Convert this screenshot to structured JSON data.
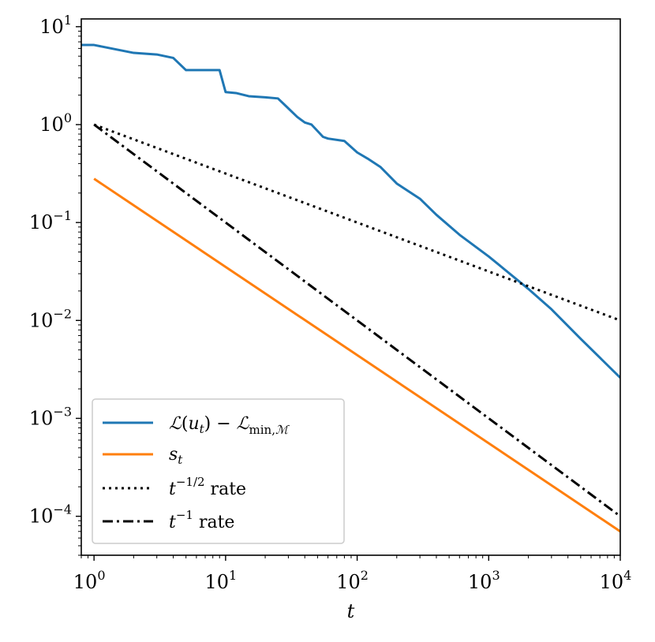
{
  "chart_data": {
    "type": "line",
    "xlabel": "t",
    "ylabel": "",
    "xscale": "log",
    "yscale": "log",
    "xlim": [
      0.8,
      10000
    ],
    "ylim": [
      4e-05,
      12
    ],
    "grid": false,
    "legend_position": "lower-left",
    "x_ticks": [
      {
        "base": "10",
        "exp": "0",
        "value": 1
      },
      {
        "base": "10",
        "exp": "1",
        "value": 10
      },
      {
        "base": "10",
        "exp": "2",
        "value": 100
      },
      {
        "base": "10",
        "exp": "3",
        "value": 1000
      },
      {
        "base": "10",
        "exp": "4",
        "value": 10000
      }
    ],
    "y_ticks": [
      {
        "base": "10",
        "exp": "1",
        "value": 10
      },
      {
        "base": "10",
        "exp": "0",
        "value": 1
      },
      {
        "base": "10",
        "exp": "−1",
        "value": 0.1
      },
      {
        "base": "10",
        "exp": "−2",
        "value": 0.01
      },
      {
        "base": "10",
        "exp": "−3",
        "value": 0.001
      },
      {
        "base": "10",
        "exp": "−4",
        "value": 0.0001
      }
    ],
    "series": [
      {
        "name": "ℒ(u_t) − ℒ_min,ℳ",
        "color": "#1f77b4",
        "style": "solid",
        "x": [
          0.8,
          1,
          2,
          3,
          4,
          5,
          7,
          9,
          10,
          12,
          15,
          20,
          25,
          28,
          35,
          40,
          45,
          55,
          60,
          80,
          100,
          120,
          150,
          200,
          300,
          400,
          600,
          1000,
          2000,
          3000,
          5000,
          10000
        ],
        "y": [
          6.5,
          6.5,
          5.4,
          5.2,
          4.8,
          3.6,
          3.6,
          3.6,
          2.15,
          2.1,
          1.95,
          1.9,
          1.85,
          1.6,
          1.2,
          1.05,
          1.0,
          0.75,
          0.72,
          0.68,
          0.52,
          0.45,
          0.37,
          0.25,
          0.175,
          0.12,
          0.075,
          0.045,
          0.021,
          0.013,
          0.0065,
          0.0026
        ]
      },
      {
        "name": "s_t",
        "color": "#ff7f0e",
        "style": "solid",
        "x": [
          1,
          10000
        ],
        "y": [
          0.28,
          7e-05
        ]
      },
      {
        "name": "t^{-1/2} rate",
        "color": "#000000",
        "style": "dotted",
        "x": [
          1,
          10000
        ],
        "y": [
          1,
          0.01
        ]
      },
      {
        "name": "t^{-1} rate",
        "color": "#000000",
        "style": "dashdot",
        "x": [
          1,
          10000
        ],
        "y": [
          1,
          0.0001
        ]
      }
    ]
  }
}
